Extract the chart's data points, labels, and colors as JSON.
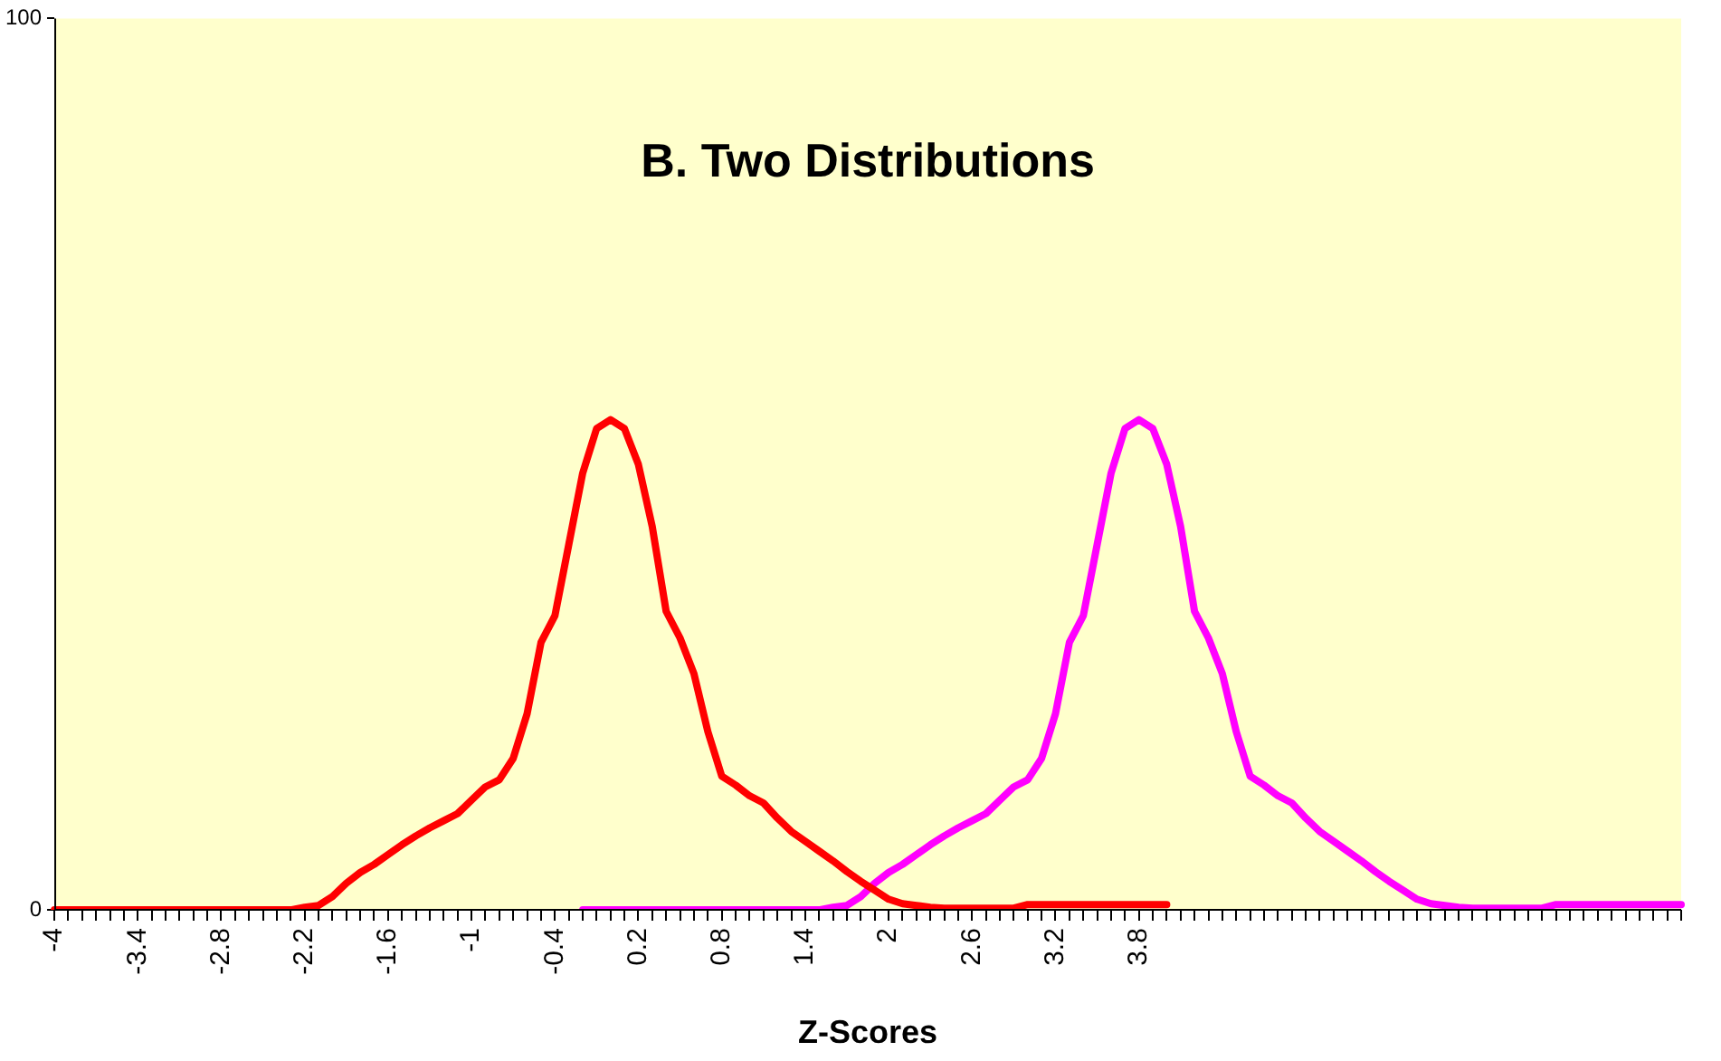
{
  "chart_data": {
    "type": "line",
    "title": "B. Two Distributions",
    "xlabel": "Z-Scores",
    "categories": [
      "-4",
      null,
      null,
      null,
      null,
      null,
      "-3.4",
      null,
      null,
      null,
      null,
      null,
      "-2.8",
      null,
      null,
      null,
      null,
      null,
      "-2.2",
      null,
      null,
      null,
      null,
      null,
      "-1.6",
      null,
      null,
      null,
      null,
      null,
      "-1",
      null,
      null,
      null,
      null,
      null,
      "-0.4",
      null,
      null,
      null,
      null,
      null,
      "0.2",
      null,
      null,
      null,
      null,
      null,
      "0.8",
      null,
      null,
      null,
      null,
      null,
      "1.4",
      null,
      null,
      null,
      null,
      null,
      "2",
      null,
      null,
      null,
      null,
      null,
      "2.6",
      null,
      null,
      null,
      null,
      null,
      "3.2",
      null,
      null,
      null,
      null,
      null,
      "3.8",
      null,
      null,
      null,
      null,
      null,
      null,
      null,
      null,
      null,
      null,
      null,
      null,
      null,
      null,
      null,
      null,
      null,
      null,
      null,
      null,
      null,
      null,
      null,
      null,
      null,
      null,
      null,
      null,
      null,
      null,
      null,
      null,
      null,
      null,
      null,
      null,
      null,
      null,
      null
    ],
    "series": [
      {
        "color": "#ff0000",
        "values": [
          0,
          0,
          0,
          0,
          0,
          0,
          0,
          0,
          0,
          0,
          0,
          0,
          0,
          0,
          0,
          0,
          0,
          0,
          0.3,
          0.5,
          1.5,
          3,
          4.2,
          5.1,
          6.2,
          7.3,
          8.3,
          9.2,
          10,
          10.8,
          12.3,
          13.8,
          14.6,
          17,
          22,
          30,
          33,
          41,
          49,
          54,
          55,
          54,
          50,
          43,
          33.5,
          30.5,
          26.5,
          20,
          15,
          14,
          12.8,
          12,
          10.3,
          8.8,
          7.7,
          6.6,
          5.5,
          4.3,
          3.2,
          2.2,
          1.2,
          0.7,
          0.5,
          0.3,
          0.2,
          0.2,
          0.2,
          0.2,
          0.2,
          0.2,
          0.6,
          0.6,
          0.6,
          0.6,
          0.6,
          0.6,
          0.6,
          0.6,
          0.6,
          0.6,
          0.6,
          null,
          null,
          null,
          null,
          null,
          null,
          null,
          null,
          null,
          null,
          null,
          null,
          null,
          null,
          null,
          null,
          null,
          null,
          null,
          null,
          null,
          null,
          null,
          null,
          null,
          null,
          null,
          null,
          null,
          null,
          null,
          null,
          null,
          null,
          null,
          null,
          null
        ]
      },
      {
        "color": "#ff00ff",
        "values": [
          null,
          null,
          null,
          null,
          null,
          null,
          null,
          null,
          null,
          null,
          null,
          null,
          null,
          null,
          null,
          null,
          null,
          null,
          null,
          null,
          null,
          null,
          null,
          null,
          null,
          null,
          null,
          null,
          null,
          null,
          null,
          null,
          null,
          null,
          null,
          null,
          null,
          null,
          0,
          0,
          0,
          0,
          0,
          0,
          0,
          0,
          0,
          0,
          0,
          0,
          0,
          0,
          0,
          0,
          0,
          0,
          0.3,
          0.5,
          1.5,
          3,
          4.2,
          5.1,
          6.2,
          7.3,
          8.3,
          9.2,
          10,
          10.8,
          12.3,
          13.8,
          14.6,
          17,
          22,
          30,
          33,
          41,
          49,
          54,
          55,
          54,
          50,
          43,
          33.5,
          30.5,
          26.5,
          20,
          15,
          14,
          12.8,
          12,
          10.3,
          8.8,
          7.7,
          6.6,
          5.5,
          4.3,
          3.2,
          2.2,
          1.2,
          0.7,
          0.5,
          0.3,
          0.2,
          0.2,
          0.2,
          0.2,
          0.2,
          0.2,
          0.6,
          0.6,
          0.6,
          0.6,
          0.6,
          0.6,
          0.6,
          0.6,
          0.6,
          0.6
        ]
      }
    ],
    "ylim": [
      0,
      100
    ],
    "yticks": [
      0,
      100
    ],
    "grid": false,
    "legend": false,
    "marker": "none",
    "line_style": "solid"
  }
}
